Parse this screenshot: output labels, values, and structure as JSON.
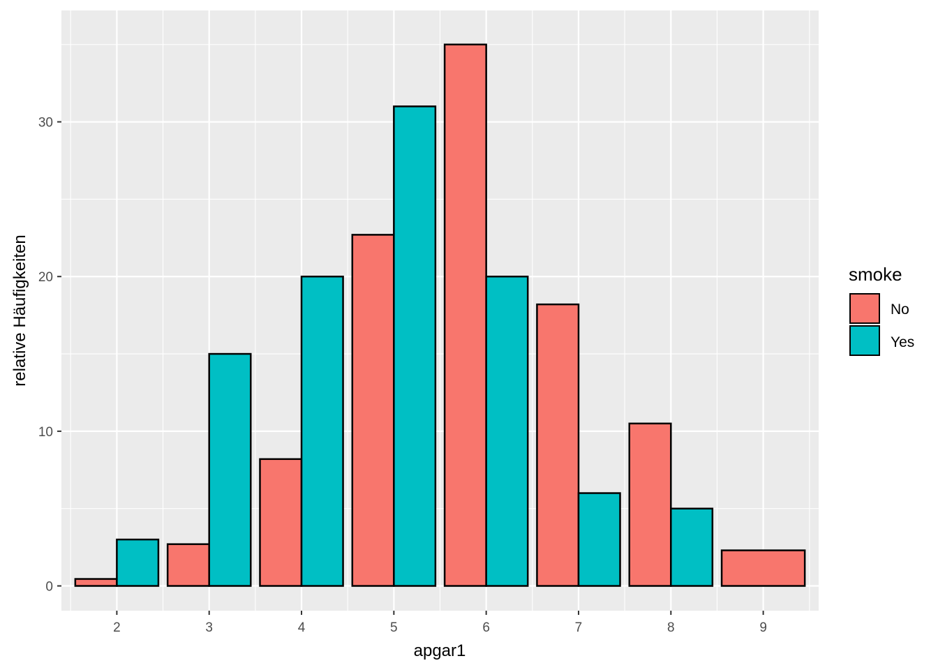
{
  "chart_data": {
    "type": "bar",
    "xlabel": "apgar1",
    "ylabel": "relative Häufigkeiten",
    "categories": [
      "2",
      "3",
      "4",
      "5",
      "6",
      "7",
      "8",
      "9"
    ],
    "series": [
      {
        "name": "No",
        "color": "#F8766D",
        "values": [
          0.45,
          2.7,
          8.2,
          22.7,
          35.0,
          18.2,
          10.5,
          2.3
        ]
      },
      {
        "name": "Yes",
        "color": "#00BFC4",
        "values": [
          3.0,
          15.0,
          20.0,
          31.0,
          20.0,
          6.0,
          5.0,
          null
        ]
      }
    ],
    "ylim": [
      -1.6,
      37.2
    ],
    "yticks": [
      0,
      10,
      20,
      30
    ],
    "ytick_labels": [
      "0",
      "10",
      "20",
      "30"
    ],
    "legend": {
      "title": "smoke",
      "position": "right"
    },
    "grid": true
  }
}
